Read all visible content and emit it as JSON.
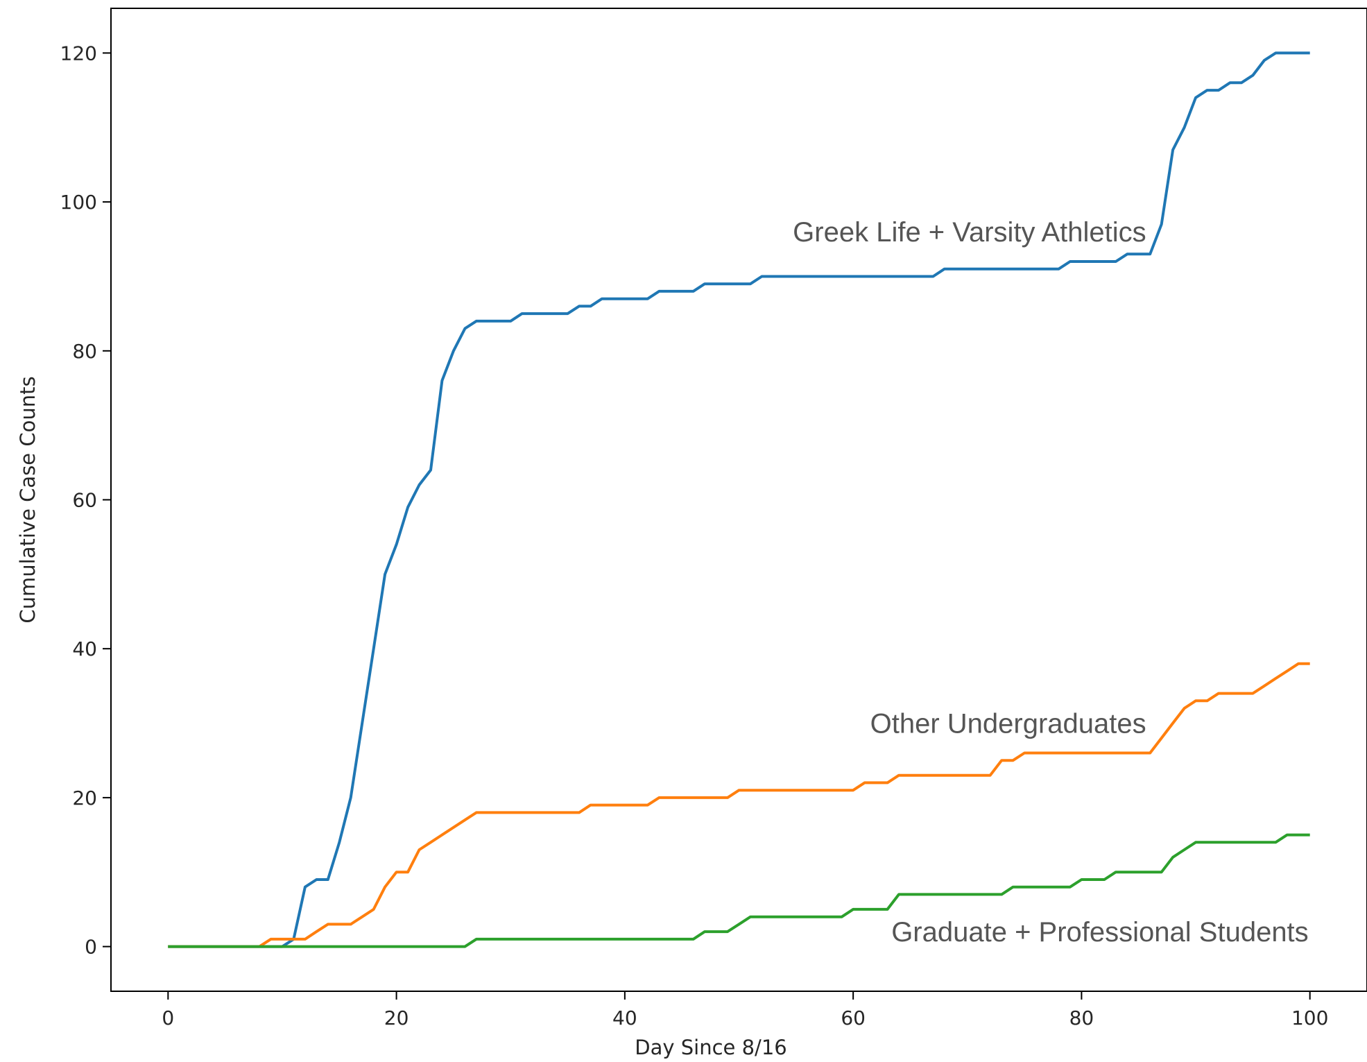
{
  "chart_data": {
    "type": "line",
    "title": "",
    "xlabel": "Day Since 8/16",
    "ylabel": "Cumulative Case Counts",
    "xlim": [
      -5,
      105
    ],
    "ylim": [
      -6,
      126
    ],
    "xticks": [
      0,
      20,
      40,
      60,
      80,
      100
    ],
    "yticks": [
      0,
      20,
      40,
      60,
      80,
      100,
      120
    ],
    "grid": false,
    "legend": "none",
    "annotations": [
      {
        "text": "Greek Life + Varsity Athletics",
        "series": "greek"
      },
      {
        "text": "Other Undergraduates",
        "series": "undergrad"
      },
      {
        "text": "Graduate + Professional Students",
        "series": "grad"
      }
    ],
    "series": [
      {
        "id": "greek",
        "color": "#1f77b4",
        "x": [
          0,
          10,
          11,
          12,
          13,
          14,
          15,
          16,
          17,
          18,
          19,
          20,
          21,
          22,
          23,
          24,
          25,
          26,
          27,
          30,
          31,
          35,
          36,
          37,
          38,
          42,
          43,
          46,
          47,
          50,
          51,
          52,
          67,
          68,
          78,
          79,
          83,
          84,
          86,
          87,
          88,
          89,
          90,
          91,
          92,
          93,
          94,
          95,
          96,
          97,
          98,
          100
        ],
        "y": [
          0,
          0,
          1,
          8,
          9,
          9,
          14,
          20,
          30,
          40,
          50,
          54,
          59,
          62,
          64,
          76,
          80,
          83,
          84,
          84,
          85,
          85,
          86,
          86,
          87,
          87,
          88,
          88,
          89,
          89,
          89,
          90,
          90,
          91,
          91,
          92,
          92,
          93,
          93,
          97,
          107,
          110,
          114,
          115,
          115,
          116,
          116,
          117,
          119,
          120,
          120,
          120
        ]
      },
      {
        "id": "undergrad",
        "color": "#ff7f0e",
        "x": [
          0,
          8,
          9,
          11,
          12,
          13,
          14,
          16,
          17,
          18,
          19,
          20,
          21,
          22,
          23,
          24,
          25,
          26,
          27,
          36,
          37,
          42,
          43,
          49,
          50,
          60,
          61,
          63,
          64,
          72,
          73,
          74,
          75,
          86,
          87,
          88,
          89,
          90,
          91,
          92,
          95,
          96,
          97,
          98,
          99,
          100
        ],
        "y": [
          0,
          0,
          1,
          1,
          1,
          2,
          3,
          3,
          4,
          5,
          8,
          10,
          10,
          13,
          14,
          15,
          16,
          17,
          18,
          18,
          19,
          19,
          20,
          20,
          21,
          21,
          22,
          22,
          23,
          23,
          25,
          25,
          26,
          26,
          28,
          30,
          32,
          33,
          33,
          34,
          34,
          35,
          36,
          37,
          38,
          38
        ],
        "label_hint": ""
      },
      {
        "id": "grad",
        "color": "#2ca02c",
        "x": [
          0,
          26,
          27,
          46,
          47,
          49,
          50,
          51,
          59,
          60,
          63,
          64,
          73,
          74,
          79,
          80,
          82,
          83,
          87,
          88,
          89,
          90,
          91,
          97,
          98,
          100
        ],
        "y": [
          0,
          0,
          1,
          1,
          2,
          2,
          3,
          4,
          4,
          5,
          5,
          7,
          7,
          8,
          8,
          9,
          9,
          10,
          10,
          12,
          13,
          14,
          14,
          14,
          15,
          15
        ]
      }
    ]
  }
}
